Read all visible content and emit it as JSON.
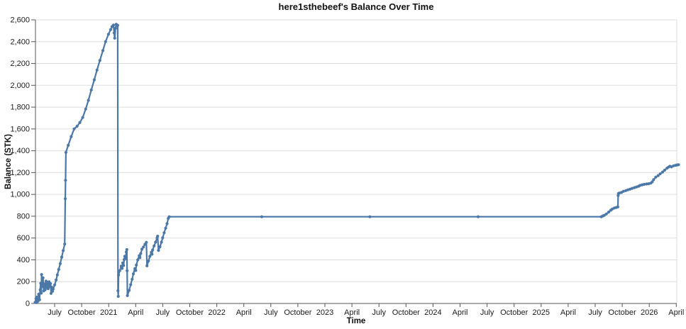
{
  "title": "here1sthebeef's Balance Over Time",
  "colors": {
    "line": "#4c78a8",
    "grid": "#dddddd",
    "view_border": "#dddddd",
    "axis_domain": "#555555",
    "label": "#1a1a1a",
    "background": "#ffffff"
  },
  "chart_data": {
    "type": "line",
    "title": "here1sthebeef's Balance Over Time",
    "xlabel": "Time",
    "ylabel": "Balance (STK)",
    "grid": "horizontal-only",
    "legend": "none",
    "point_markers": true,
    "ylim": [
      0,
      2600
    ],
    "x_range": [
      "2020-04-25",
      "2026-04-18"
    ],
    "y_axis": {
      "ticks": [
        {
          "label": "0",
          "v": 0
        },
        {
          "label": "200",
          "v": 200
        },
        {
          "label": "400",
          "v": 400
        },
        {
          "label": "600",
          "v": 600
        },
        {
          "label": "800",
          "v": 800
        },
        {
          "label": "1,000",
          "v": 1000
        },
        {
          "label": "1,200",
          "v": 1200
        },
        {
          "label": "1,400",
          "v": 1400
        },
        {
          "label": "1,600",
          "v": 1600
        },
        {
          "label": "1,800",
          "v": 1800
        },
        {
          "label": "2,000",
          "v": 2000
        },
        {
          "label": "2,200",
          "v": 2200
        },
        {
          "label": "2,400",
          "v": 2400
        },
        {
          "label": "2,600",
          "v": 2600
        }
      ]
    },
    "x_axis": {
      "ticks": [
        {
          "label": "July",
          "m": 0
        },
        {
          "label": "October",
          "m": 3
        },
        {
          "label": "2021",
          "m": 6
        },
        {
          "label": "April",
          "m": 9
        },
        {
          "label": "July",
          "m": 12
        },
        {
          "label": "October",
          "m": 15
        },
        {
          "label": "2022",
          "m": 18
        },
        {
          "label": "April",
          "m": 21
        },
        {
          "label": "July",
          "m": 24
        },
        {
          "label": "October",
          "m": 27
        },
        {
          "label": "2023",
          "m": 30
        },
        {
          "label": "April",
          "m": 33
        },
        {
          "label": "July",
          "m": 36
        },
        {
          "label": "October",
          "m": 39
        },
        {
          "label": "2024",
          "m": 42
        },
        {
          "label": "April",
          "m": 45
        },
        {
          "label": "July",
          "m": 48
        },
        {
          "label": "October",
          "m": 51
        },
        {
          "label": "2025",
          "m": 54
        },
        {
          "label": "April",
          "m": 57
        },
        {
          "label": "July",
          "m": 60
        },
        {
          "label": "October",
          "m": 63
        },
        {
          "label": "2026",
          "m": 66
        },
        {
          "label": "April",
          "m": 69
        }
      ]
    },
    "series": [
      {
        "name": "balance",
        "points": [
          [
            "2020-04-26",
            10
          ],
          [
            "2020-04-29",
            45
          ],
          [
            "2020-05-01",
            8
          ],
          [
            "2020-05-03",
            60
          ],
          [
            "2020-05-06",
            22
          ],
          [
            "2020-05-08",
            85
          ],
          [
            "2020-05-11",
            35
          ],
          [
            "2020-05-13",
            125
          ],
          [
            "2020-05-15",
            185
          ],
          [
            "2020-05-17",
            95
          ],
          [
            "2020-05-18",
            265
          ],
          [
            "2020-05-20",
            155
          ],
          [
            "2020-05-23",
            235
          ],
          [
            "2020-05-25",
            115
          ],
          [
            "2020-05-28",
            180
          ],
          [
            "2020-05-30",
            125
          ],
          [
            "2020-06-02",
            205
          ],
          [
            "2020-06-05",
            145
          ],
          [
            "2020-06-07",
            195
          ],
          [
            "2020-06-09",
            135
          ],
          [
            "2020-06-12",
            198
          ],
          [
            "2020-06-14",
            155
          ],
          [
            "2020-06-17",
            182
          ],
          [
            "2020-06-19",
            92
          ],
          [
            "2020-06-21",
            150
          ],
          [
            "2020-06-24",
            112
          ],
          [
            "2020-06-26",
            132
          ],
          [
            "2020-07-01",
            170
          ],
          [
            "2020-07-06",
            215
          ],
          [
            "2020-07-10",
            262
          ],
          [
            "2020-07-15",
            312
          ],
          [
            "2020-07-20",
            365
          ],
          [
            "2020-07-25",
            425
          ],
          [
            "2020-07-30",
            485
          ],
          [
            "2020-08-04",
            545
          ],
          [
            "2020-08-06",
            960
          ],
          [
            "2020-08-07",
            1130
          ],
          [
            "2020-08-08",
            1385
          ],
          [
            "2020-08-16",
            1450
          ],
          [
            "2020-08-26",
            1530
          ],
          [
            "2020-09-05",
            1600
          ],
          [
            "2020-09-15",
            1625
          ],
          [
            "2020-09-24",
            1658
          ],
          [
            "2020-10-04",
            1705
          ],
          [
            "2020-10-14",
            1782
          ],
          [
            "2020-10-23",
            1862
          ],
          [
            "2020-11-02",
            1958
          ],
          [
            "2020-11-12",
            2050
          ],
          [
            "2020-11-21",
            2140
          ],
          [
            "2020-12-01",
            2228
          ],
          [
            "2020-12-11",
            2318
          ],
          [
            "2020-12-20",
            2400
          ],
          [
            "2020-12-30",
            2468
          ],
          [
            "2021-01-06",
            2510
          ],
          [
            "2021-01-11",
            2538
          ],
          [
            "2021-01-16",
            2552
          ],
          [
            "2021-01-18",
            2480
          ],
          [
            "2021-01-20",
            2432
          ],
          [
            "2021-01-23",
            2524
          ],
          [
            "2021-01-25",
            2560
          ],
          [
            "2021-01-27",
            2548
          ],
          [
            "2021-01-30",
            2550
          ],
          [
            "2021-01-31",
            117
          ],
          [
            "2021-02-01",
            65
          ],
          [
            "2021-02-02",
            260
          ],
          [
            "2021-02-06",
            300
          ],
          [
            "2021-02-11",
            342
          ],
          [
            "2021-02-14",
            322
          ],
          [
            "2021-02-16",
            372
          ],
          [
            "2021-02-19",
            348
          ],
          [
            "2021-02-21",
            402
          ],
          [
            "2021-02-23",
            432
          ],
          [
            "2021-02-26",
            412
          ],
          [
            "2021-02-28",
            472
          ],
          [
            "2021-03-02",
            494
          ],
          [
            "2021-03-03",
            300
          ],
          [
            "2021-03-04",
            72
          ],
          [
            "2021-03-10",
            120
          ],
          [
            "2021-03-15",
            172
          ],
          [
            "2021-03-20",
            222
          ],
          [
            "2021-03-24",
            272
          ],
          [
            "2021-03-29",
            320
          ],
          [
            "2021-04-01",
            302
          ],
          [
            "2021-04-03",
            352
          ],
          [
            "2021-04-08",
            400
          ],
          [
            "2021-04-13",
            438
          ],
          [
            "2021-04-15",
            420
          ],
          [
            "2021-04-18",
            458
          ],
          [
            "2021-04-22",
            498
          ],
          [
            "2021-04-27",
            518
          ],
          [
            "2021-05-02",
            542
          ],
          [
            "2021-05-07",
            560
          ],
          [
            "2021-05-09",
            345
          ],
          [
            "2021-05-14",
            390
          ],
          [
            "2021-05-19",
            432
          ],
          [
            "2021-05-24",
            470
          ],
          [
            "2021-05-26",
            452
          ],
          [
            "2021-05-28",
            490
          ],
          [
            "2021-06-02",
            528
          ],
          [
            "2021-06-07",
            562
          ],
          [
            "2021-06-12",
            600
          ],
          [
            "2021-06-14",
            617
          ],
          [
            "2021-06-17",
            487
          ],
          [
            "2021-06-22",
            520
          ],
          [
            "2021-06-27",
            562
          ],
          [
            "2021-07-01",
            602
          ],
          [
            "2021-07-06",
            648
          ],
          [
            "2021-07-11",
            690
          ],
          [
            "2021-07-16",
            732
          ],
          [
            "2021-07-20",
            780
          ],
          [
            "2021-07-23",
            795
          ],
          [
            "2022-06-01",
            795
          ],
          [
            "2023-06-01",
            795
          ],
          [
            "2024-06-01",
            795
          ],
          [
            "2025-07-22",
            795
          ],
          [
            "2025-07-27",
            802
          ],
          [
            "2025-08-01",
            808
          ],
          [
            "2025-08-08",
            820
          ],
          [
            "2025-08-16",
            838
          ],
          [
            "2025-08-23",
            855
          ],
          [
            "2025-08-28",
            866
          ],
          [
            "2025-09-04",
            875
          ],
          [
            "2025-09-11",
            881
          ],
          [
            "2025-09-16",
            885
          ],
          [
            "2025-09-17",
            990
          ],
          [
            "2025-09-18",
            1008
          ],
          [
            "2025-09-21",
            1012
          ],
          [
            "2025-09-28",
            1018
          ],
          [
            "2025-10-05",
            1028
          ],
          [
            "2025-10-13",
            1035
          ],
          [
            "2025-10-20",
            1042
          ],
          [
            "2025-10-27",
            1048
          ],
          [
            "2025-11-03",
            1055
          ],
          [
            "2025-11-11",
            1062
          ],
          [
            "2025-11-18",
            1068
          ],
          [
            "2025-11-25",
            1075
          ],
          [
            "2025-11-30",
            1082
          ],
          [
            "2025-12-07",
            1088
          ],
          [
            "2025-12-14",
            1092
          ],
          [
            "2025-12-22",
            1095
          ],
          [
            "2025-12-29",
            1098
          ],
          [
            "2026-01-05",
            1103
          ],
          [
            "2026-01-10",
            1115
          ],
          [
            "2026-01-15",
            1135
          ],
          [
            "2026-01-22",
            1158
          ],
          [
            "2026-01-30",
            1172
          ],
          [
            "2026-02-06",
            1188
          ],
          [
            "2026-02-14",
            1205
          ],
          [
            "2026-02-21",
            1222
          ],
          [
            "2026-03-01",
            1240
          ],
          [
            "2026-03-06",
            1250
          ],
          [
            "2026-03-11",
            1258
          ],
          [
            "2026-03-16",
            1252
          ],
          [
            "2026-03-23",
            1262
          ],
          [
            "2026-03-30",
            1266
          ],
          [
            "2026-04-04",
            1270
          ],
          [
            "2026-04-09",
            1272
          ]
        ]
      }
    ]
  }
}
